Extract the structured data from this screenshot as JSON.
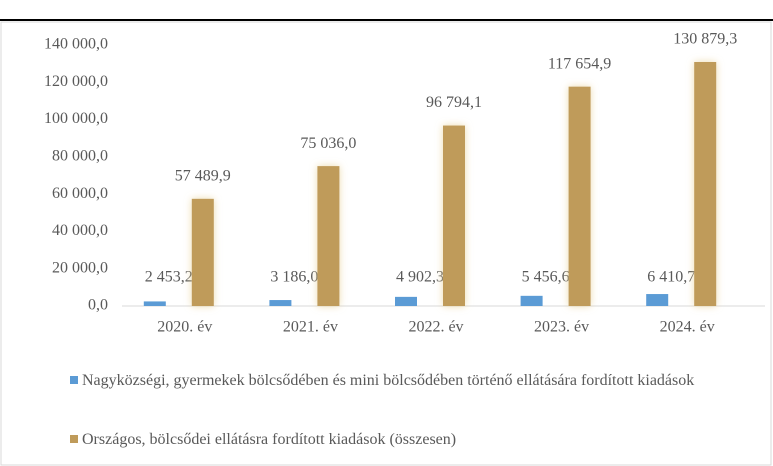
{
  "chart_data": {
    "type": "bar",
    "categories": [
      "2020. év",
      "2021. év",
      "2022. év",
      "2023. év",
      "2024. év"
    ],
    "series": [
      {
        "name": "Nagyközségi, gyermekek bölcsődében és mini bölcsődében történő ellátására fordított kiadások",
        "color": "#5b9bd5",
        "values": [
          2453.2,
          3186.0,
          4902.3,
          5456.6,
          6410.7
        ],
        "value_labels": [
          "2 453,2",
          "3 186,0",
          "4 902,3",
          "5 456,6",
          "6 410,7"
        ]
      },
      {
        "name": "Országos, bölcsődei ellátásra fordított kiadások (összesen)",
        "color": "#bf9b5a",
        "values": [
          57489.9,
          75036.0,
          96794.1,
          117654.9,
          130879.3
        ],
        "value_labels": [
          "57 489,9",
          "75 036,0",
          "96 794,1",
          "117 654,9",
          "130 879,3"
        ]
      }
    ],
    "ylim": [
      0,
      140000
    ],
    "yticks": [
      {
        "value": 0,
        "label": "0,0"
      },
      {
        "value": 20000,
        "label": "20 000,0"
      },
      {
        "value": 40000,
        "label": "40 000,0"
      },
      {
        "value": 60000,
        "label": "60 000,0"
      },
      {
        "value": 80000,
        "label": "80 000,0"
      },
      {
        "value": 100000,
        "label": "100 000,0"
      },
      {
        "value": 120000,
        "label": "120 000,0"
      },
      {
        "value": 140000,
        "label": "140 000,0"
      }
    ],
    "grid": false,
    "legend": "bottom"
  }
}
